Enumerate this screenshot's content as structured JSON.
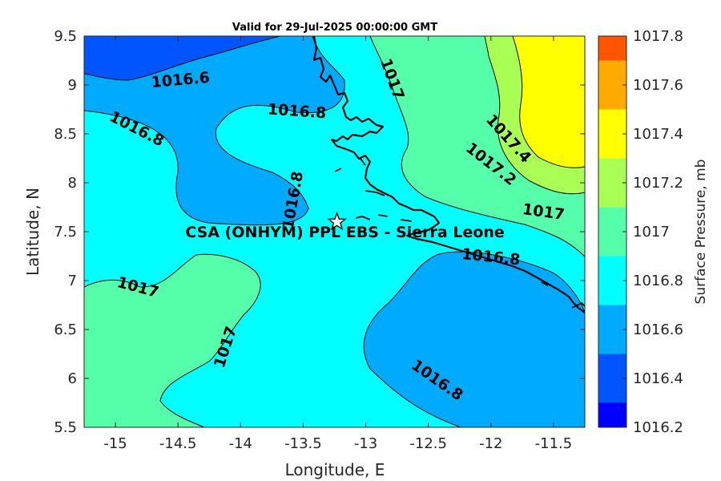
{
  "title": "Valid for 29-Jul-2025 00:00:00 GMT",
  "axes": {
    "xlabel": "Longitude, E",
    "ylabel": "Latitude, N",
    "xticks": [
      -15,
      -14.5,
      -14,
      -13.5,
      -13,
      -12.5,
      -12,
      -11.5
    ],
    "xtick_labels": [
      "-15",
      "-14.5",
      "-14",
      "-13.5",
      "-13",
      "-12.5",
      "-12",
      "-11.5"
    ],
    "yticks": [
      5.5,
      6,
      6.5,
      7,
      7.5,
      8,
      8.5,
      9,
      9.5
    ],
    "ytick_labels": [
      "5.5",
      "6",
      "6.5",
      "7",
      "7.5",
      "8",
      "8.5",
      "9",
      "9.5"
    ],
    "xlim": [
      -15.25,
      -11.25
    ],
    "ylim": [
      5.5,
      9.5
    ]
  },
  "colorbar": {
    "label": "Surface Pressure, mb",
    "ticks": [
      1016.2,
      1016.4,
      1016.6,
      1016.8,
      1017,
      1017.2,
      1017.4,
      1017.6,
      1017.8
    ],
    "tick_labels": [
      "1016.2",
      "1016.4",
      "1016.6",
      "1016.8",
      "1017",
      "1017.2",
      "1017.4",
      "1017.6",
      "1017.8"
    ],
    "levels": [
      {
        "min": 1016.2,
        "max": 1016.3,
        "color": "#0000ff"
      },
      {
        "min": 1016.3,
        "max": 1016.5,
        "color": "#0055ff"
      },
      {
        "min": 1016.5,
        "max": 1016.7,
        "color": "#00aaff"
      },
      {
        "min": 1016.7,
        "max": 1016.9,
        "color": "#00ffff"
      },
      {
        "min": 1016.9,
        "max": 1017.1,
        "color": "#55ffaa"
      },
      {
        "min": 1017.1,
        "max": 1017.3,
        "color": "#aaff55"
      },
      {
        "min": 1017.3,
        "max": 1017.5,
        "color": "#ffff00"
      },
      {
        "min": 1017.5,
        "max": 1017.7,
        "color": "#ffaa00"
      },
      {
        "min": 1017.7,
        "max": 1017.8,
        "color": "#ff5500"
      }
    ]
  },
  "station": {
    "label": "CSA (ONHYM) PPL EBS  - Sierra Leone",
    "lon": -13.23,
    "lat": 7.6,
    "marker": "star-icon"
  },
  "contour_labels": [
    {
      "text": "1016.6",
      "lon": -14.48,
      "lat": 9.05,
      "angle": -5
    },
    {
      "text": "1016.8",
      "lon": -13.55,
      "lat": 8.73,
      "angle": 4
    },
    {
      "text": "1016.8",
      "lon": -14.83,
      "lat": 8.55,
      "angle": 27
    },
    {
      "text": "1016.8",
      "lon": -13.58,
      "lat": 7.82,
      "angle": -80
    },
    {
      "text": "1017",
      "lon": -12.79,
      "lat": 9.06,
      "angle": 70
    },
    {
      "text": "1017",
      "lon": -14.82,
      "lat": 6.93,
      "angle": 15
    },
    {
      "text": "1017",
      "lon": -14.12,
      "lat": 6.32,
      "angle": -72
    },
    {
      "text": "1017",
      "lon": -11.58,
      "lat": 7.7,
      "angle": 8
    },
    {
      "text": "1017.4",
      "lon": -11.86,
      "lat": 8.45,
      "angle": 48
    },
    {
      "text": "1017.2",
      "lon": -12.0,
      "lat": 8.19,
      "angle": 38
    },
    {
      "text": "1016.8",
      "lon": -12.0,
      "lat": 7.24,
      "angle": 6
    },
    {
      "text": "1016.8",
      "lon": -12.43,
      "lat": 5.98,
      "angle": 35
    }
  ],
  "chart_data": {
    "type": "heatmap",
    "variable": "Surface Pressure",
    "units": "mb",
    "contour_levels": [
      1016.6,
      1016.8,
      1017,
      1017.2,
      1017.4
    ],
    "xlim": [
      -15.25,
      -11.25
    ],
    "ylim": [
      5.5,
      9.5
    ],
    "zlim": [
      1016.2,
      1017.8
    ]
  }
}
